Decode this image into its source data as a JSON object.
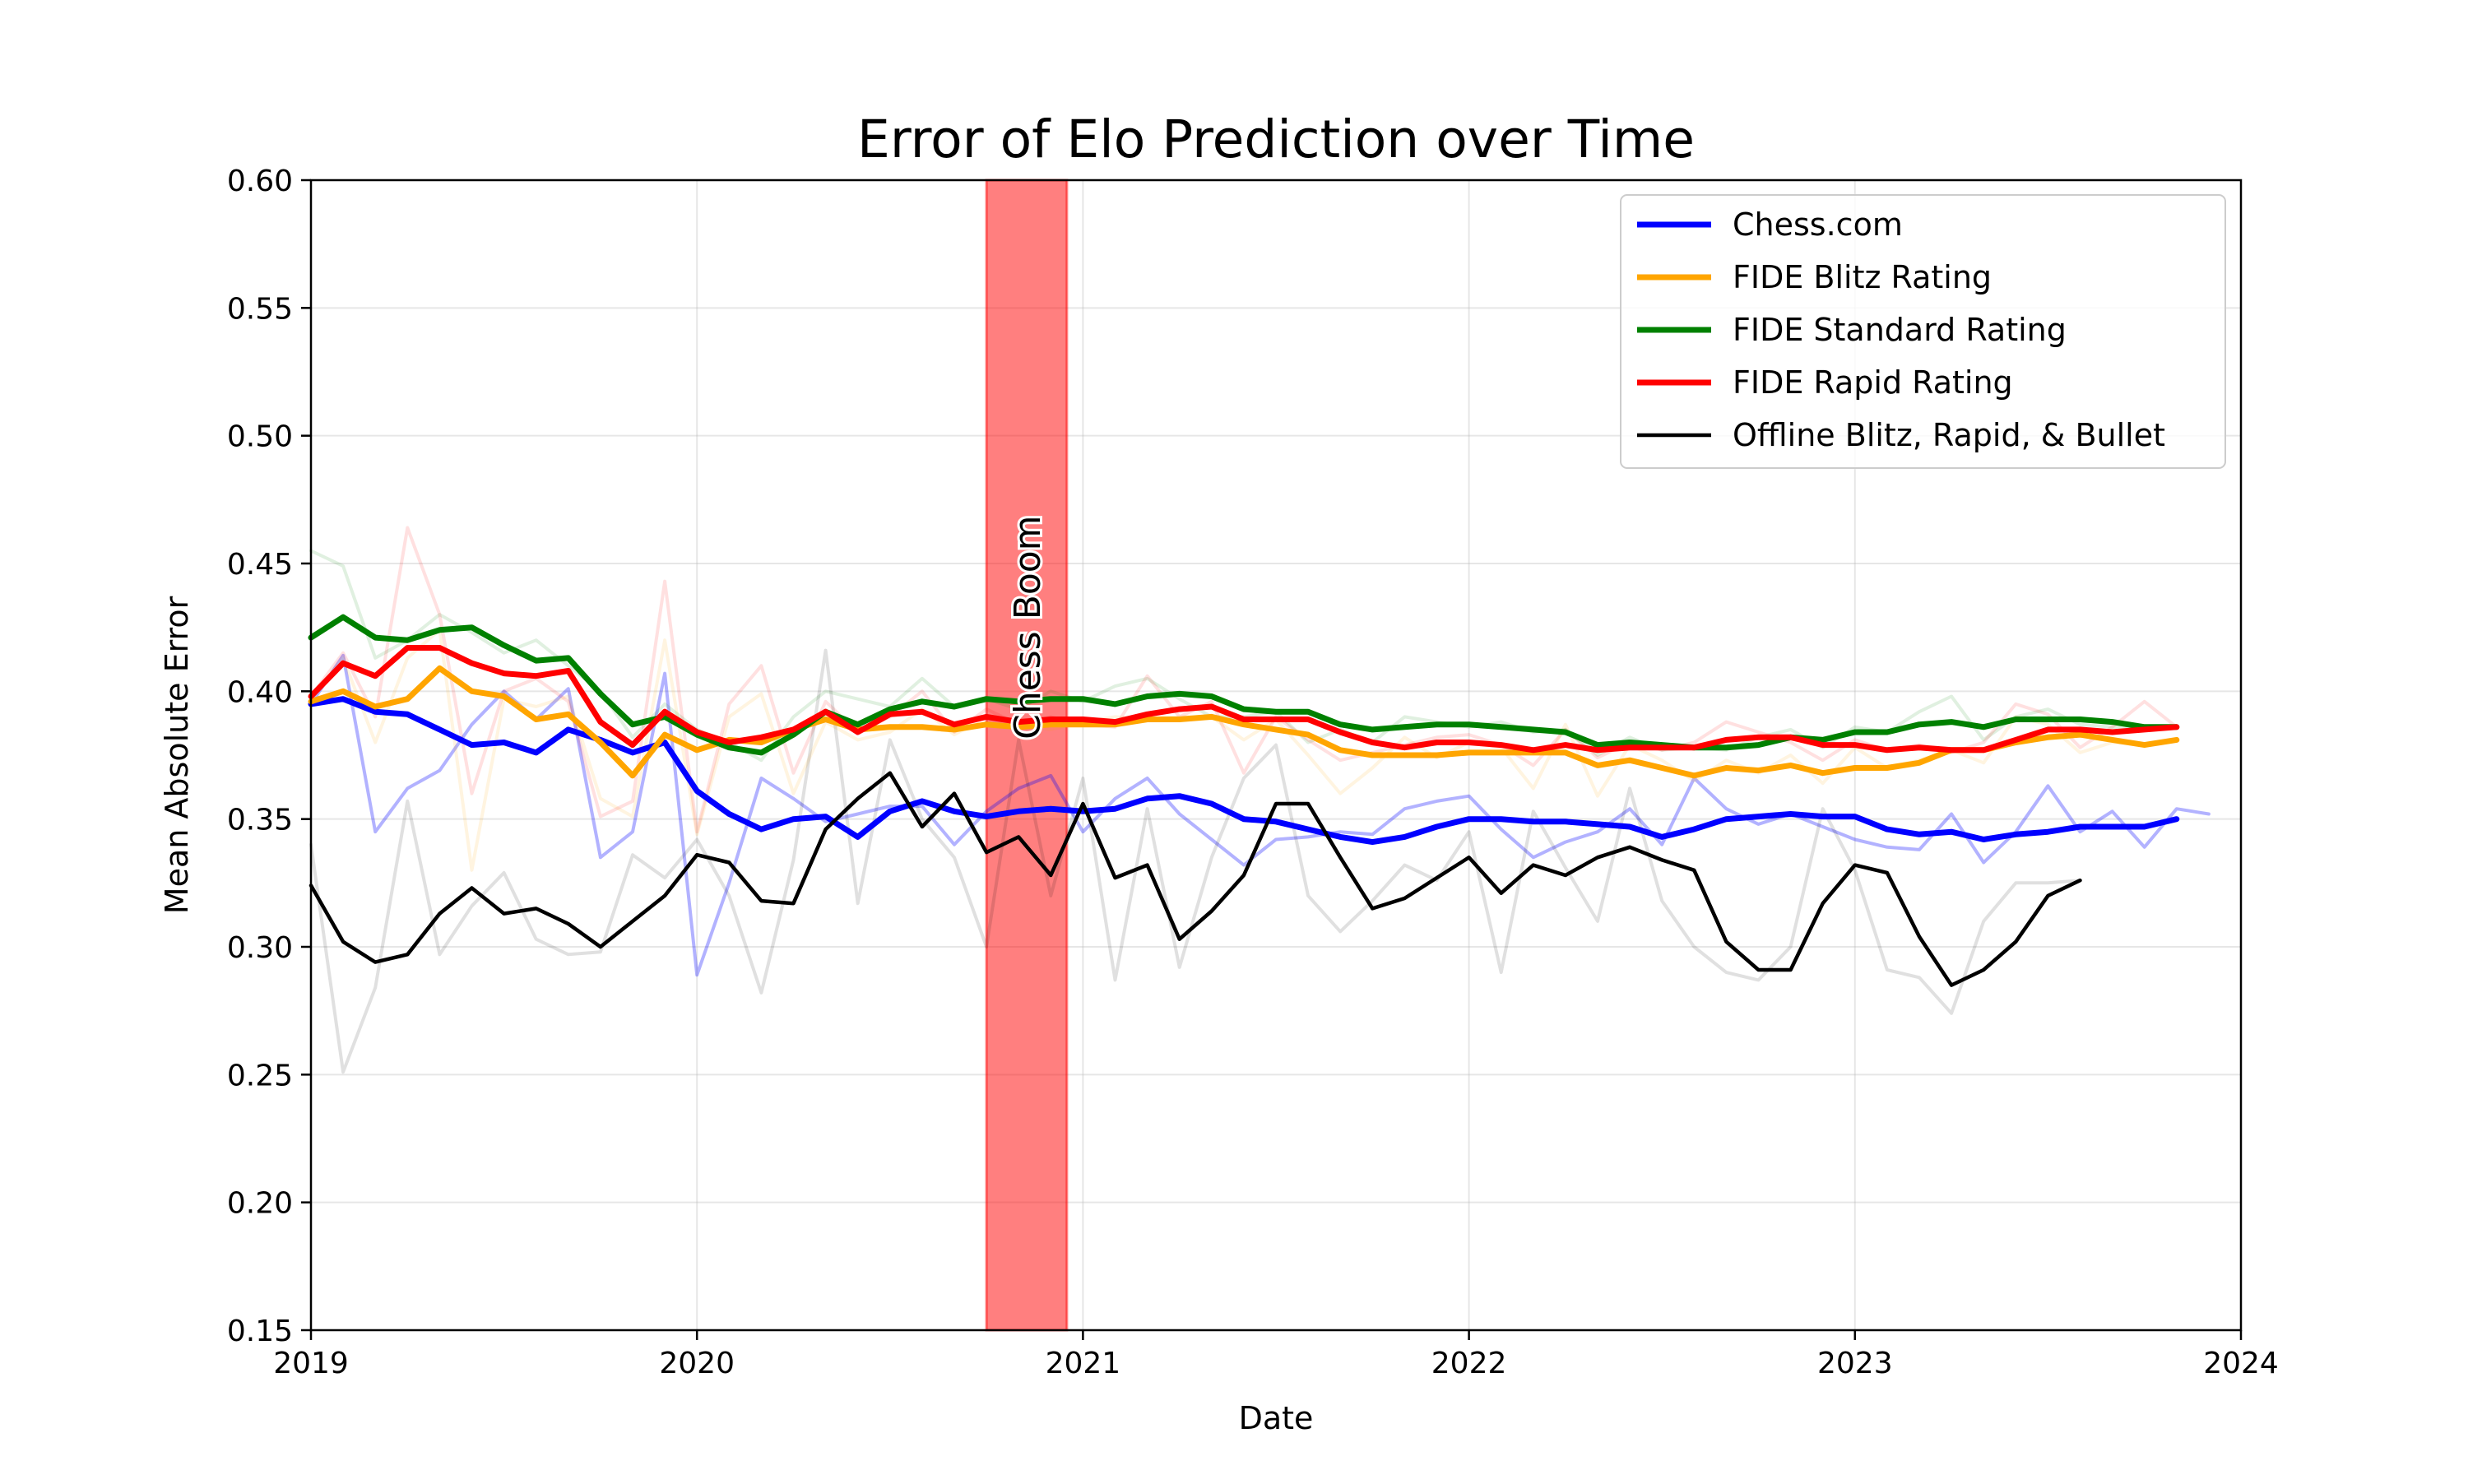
{
  "chart_data": {
    "type": "line",
    "title": "Error of Elo Prediction over Time",
    "xlabel": "Date",
    "ylabel": "Mean Absolute Error",
    "xlim": [
      "2019-01",
      "2024-01"
    ],
    "ylim": [
      0.15,
      0.6
    ],
    "x_ticks": [
      "2019",
      "2020",
      "2021",
      "2022",
      "2023",
      "2024"
    ],
    "y_ticks": [
      "0.15",
      "0.20",
      "0.25",
      "0.30",
      "0.35",
      "0.40",
      "0.45",
      "0.50",
      "0.55",
      "0.60"
    ],
    "grid": true,
    "legend_position": "top-right",
    "annotation": {
      "label": "Chess Boom",
      "x_start": "2020-10",
      "x_end": "2020-12",
      "color": "#ff0000"
    },
    "series": [
      {
        "name": "Chess.com",
        "color": "#0000ff",
        "x": [
          "2019-01",
          "2019-02",
          "2019-03",
          "2019-04",
          "2019-05",
          "2019-06",
          "2019-07",
          "2019-08",
          "2019-09",
          "2019-10",
          "2019-11",
          "2019-12",
          "2020-01",
          "2020-02",
          "2020-03",
          "2020-04",
          "2020-05",
          "2020-06",
          "2020-07",
          "2020-08",
          "2020-09",
          "2020-10",
          "2020-11",
          "2020-12",
          "2021-01",
          "2021-02",
          "2021-03",
          "2021-04",
          "2021-05",
          "2021-06",
          "2021-07",
          "2021-08",
          "2021-09",
          "2021-10",
          "2021-11",
          "2021-12",
          "2022-01",
          "2022-02",
          "2022-03",
          "2022-04",
          "2022-05",
          "2022-06",
          "2022-07",
          "2022-08",
          "2022-09",
          "2022-10",
          "2022-11",
          "2022-12",
          "2023-01",
          "2023-02",
          "2023-03",
          "2023-04",
          "2023-05",
          "2023-06",
          "2023-07",
          "2023-08",
          "2023-09",
          "2023-10",
          "2023-11"
        ],
        "values": [
          0.395,
          0.397,
          0.392,
          0.391,
          0.385,
          0.379,
          0.38,
          0.376,
          0.385,
          0.381,
          0.376,
          0.38,
          0.361,
          0.352,
          0.346,
          0.35,
          0.351,
          0.343,
          0.353,
          0.357,
          0.353,
          0.351,
          0.353,
          0.354,
          0.353,
          0.354,
          0.358,
          0.359,
          0.356,
          0.35,
          0.349,
          0.346,
          0.343,
          0.341,
          0.343,
          0.347,
          0.35,
          0.35,
          0.349,
          0.349,
          0.348,
          0.347,
          0.343,
          0.346,
          0.35,
          0.351,
          0.352,
          0.351,
          0.351,
          0.346,
          0.344,
          0.345,
          0.342,
          0.344,
          0.345,
          0.347,
          0.347,
          0.347,
          0.35
        ]
      },
      {
        "name": "FIDE Blitz Rating",
        "color": "#ffa500",
        "x": [
          "2019-01",
          "2019-02",
          "2019-03",
          "2019-04",
          "2019-05",
          "2019-06",
          "2019-07",
          "2019-08",
          "2019-09",
          "2019-10",
          "2019-11",
          "2019-12",
          "2020-01",
          "2020-02",
          "2020-03",
          "2020-04",
          "2020-05",
          "2020-06",
          "2020-07",
          "2020-08",
          "2020-09",
          "2020-10",
          "2020-11",
          "2020-12",
          "2021-01",
          "2021-02",
          "2021-03",
          "2021-04",
          "2021-05",
          "2021-06",
          "2021-07",
          "2021-08",
          "2021-09",
          "2021-10",
          "2021-11",
          "2021-12",
          "2022-01",
          "2022-02",
          "2022-03",
          "2022-04",
          "2022-05",
          "2022-06",
          "2022-07",
          "2022-08",
          "2022-09",
          "2022-10",
          "2022-11",
          "2022-12",
          "2023-01",
          "2023-02",
          "2023-03",
          "2023-04",
          "2023-05",
          "2023-06",
          "2023-07",
          "2023-08",
          "2023-09",
          "2023-10",
          "2023-11"
        ],
        "values": [
          0.396,
          0.4,
          0.394,
          0.397,
          0.409,
          0.4,
          0.398,
          0.389,
          0.391,
          0.38,
          0.367,
          0.383,
          0.377,
          0.381,
          0.38,
          0.385,
          0.389,
          0.385,
          0.386,
          0.386,
          0.385,
          0.387,
          0.386,
          0.387,
          0.387,
          0.387,
          0.389,
          0.389,
          0.39,
          0.387,
          0.385,
          0.383,
          0.377,
          0.375,
          0.375,
          0.375,
          0.376,
          0.376,
          0.376,
          0.376,
          0.371,
          0.373,
          0.37,
          0.367,
          0.37,
          0.369,
          0.371,
          0.368,
          0.37,
          0.37,
          0.372,
          0.377,
          0.377,
          0.38,
          0.382,
          0.383,
          0.381,
          0.379,
          0.381
        ]
      },
      {
        "name": "FIDE Standard Rating",
        "color": "#008000",
        "x": [
          "2019-01",
          "2019-02",
          "2019-03",
          "2019-04",
          "2019-05",
          "2019-06",
          "2019-07",
          "2019-08",
          "2019-09",
          "2019-10",
          "2019-11",
          "2019-12",
          "2020-01",
          "2020-02",
          "2020-03",
          "2020-04",
          "2020-05",
          "2020-06",
          "2020-07",
          "2020-08",
          "2020-09",
          "2020-10",
          "2020-11",
          "2020-12",
          "2021-01",
          "2021-02",
          "2021-03",
          "2021-04",
          "2021-05",
          "2021-06",
          "2021-07",
          "2021-08",
          "2021-09",
          "2021-10",
          "2021-11",
          "2021-12",
          "2022-01",
          "2022-02",
          "2022-03",
          "2022-04",
          "2022-05",
          "2022-06",
          "2022-07",
          "2022-08",
          "2022-09",
          "2022-10",
          "2022-11",
          "2022-12",
          "2023-01",
          "2023-02",
          "2023-03",
          "2023-04",
          "2023-05",
          "2023-06",
          "2023-07",
          "2023-08",
          "2023-09",
          "2023-10",
          "2023-11"
        ],
        "values": [
          0.421,
          0.429,
          0.421,
          0.42,
          0.424,
          0.425,
          0.418,
          0.412,
          0.413,
          0.399,
          0.387,
          0.39,
          0.383,
          0.378,
          0.376,
          0.383,
          0.392,
          0.387,
          0.393,
          0.396,
          0.394,
          0.397,
          0.396,
          0.397,
          0.397,
          0.395,
          0.398,
          0.399,
          0.398,
          0.393,
          0.392,
          0.392,
          0.387,
          0.385,
          0.386,
          0.387,
          0.387,
          0.386,
          0.385,
          0.384,
          0.379,
          0.38,
          0.379,
          0.378,
          0.378,
          0.379,
          0.382,
          0.381,
          0.384,
          0.384,
          0.387,
          0.388,
          0.386,
          0.389,
          0.389,
          0.389,
          0.388,
          0.386,
          0.386
        ]
      },
      {
        "name": "FIDE Rapid Rating",
        "color": "#ff0000",
        "x": [
          "2019-01",
          "2019-02",
          "2019-03",
          "2019-04",
          "2019-05",
          "2019-06",
          "2019-07",
          "2019-08",
          "2019-09",
          "2019-10",
          "2019-11",
          "2019-12",
          "2020-01",
          "2020-02",
          "2020-03",
          "2020-04",
          "2020-05",
          "2020-06",
          "2020-07",
          "2020-08",
          "2020-09",
          "2020-10",
          "2020-11",
          "2020-12",
          "2021-01",
          "2021-02",
          "2021-03",
          "2021-04",
          "2021-05",
          "2021-06",
          "2021-07",
          "2021-08",
          "2021-09",
          "2021-10",
          "2021-11",
          "2021-12",
          "2022-01",
          "2022-02",
          "2022-03",
          "2022-04",
          "2022-05",
          "2022-06",
          "2022-07",
          "2022-08",
          "2022-09",
          "2022-10",
          "2022-11",
          "2022-12",
          "2023-01",
          "2023-02",
          "2023-03",
          "2023-04",
          "2023-05",
          "2023-06",
          "2023-07",
          "2023-08",
          "2023-09",
          "2023-10",
          "2023-11"
        ],
        "values": [
          0.398,
          0.411,
          0.406,
          0.417,
          0.417,
          0.411,
          0.407,
          0.406,
          0.408,
          0.388,
          0.379,
          0.392,
          0.384,
          0.38,
          0.382,
          0.385,
          0.392,
          0.384,
          0.391,
          0.392,
          0.387,
          0.39,
          0.388,
          0.389,
          0.389,
          0.388,
          0.391,
          0.393,
          0.394,
          0.389,
          0.389,
          0.389,
          0.384,
          0.38,
          0.378,
          0.38,
          0.38,
          0.379,
          0.377,
          0.379,
          0.377,
          0.378,
          0.378,
          0.378,
          0.381,
          0.382,
          0.382,
          0.379,
          0.379,
          0.377,
          0.378,
          0.377,
          0.377,
          0.381,
          0.385,
          0.385,
          0.384,
          0.385,
          0.386
        ]
      },
      {
        "name": "Offline Blitz, Rapid, & Bullet",
        "color": "#000000",
        "x": [
          "2019-01",
          "2019-02",
          "2019-03",
          "2019-04",
          "2019-05",
          "2019-06",
          "2019-07",
          "2019-08",
          "2019-09",
          "2019-10",
          "2019-11",
          "2019-12",
          "2020-01",
          "2020-02",
          "2020-03",
          "2020-04",
          "2020-05",
          "2020-06",
          "2020-07",
          "2020-08",
          "2020-09",
          "2020-10",
          "2020-11",
          "2020-12",
          "2021-01",
          "2021-02",
          "2021-03",
          "2021-04",
          "2021-05",
          "2021-06",
          "2021-07",
          "2021-08",
          "2021-09",
          "2021-10",
          "2021-11",
          "2021-12",
          "2022-01",
          "2022-02",
          "2022-03",
          "2022-04",
          "2022-05",
          "2022-06",
          "2022-07",
          "2022-08",
          "2022-09",
          "2022-10",
          "2022-11",
          "2022-12",
          "2023-01",
          "2023-02",
          "2023-03",
          "2023-04",
          "2023-05",
          "2023-06",
          "2023-07",
          "2023-08"
        ],
        "values": [
          0.324,
          0.302,
          0.294,
          0.297,
          0.313,
          0.323,
          0.313,
          0.315,
          0.309,
          0.3,
          0.31,
          0.32,
          0.336,
          0.333,
          0.318,
          0.317,
          0.346,
          0.358,
          0.368,
          0.347,
          0.36,
          0.337,
          0.343,
          0.328,
          0.356,
          0.327,
          0.332,
          0.303,
          0.314,
          0.328,
          0.356,
          0.356,
          0.335,
          0.315,
          0.319,
          0.327,
          0.335,
          0.321,
          0.332,
          0.328,
          0.335,
          0.339,
          0.334,
          0.33,
          0.302,
          0.291,
          0.291,
          0.317,
          0.332,
          0.329,
          0.304,
          0.285,
          0.291,
          0.302,
          0.32,
          0.326
        ]
      }
    ],
    "raw_series": [
      {
        "of": "Chess.com",
        "color": "#0000ff",
        "values": [
          0.395,
          0.414,
          0.345,
          0.362,
          0.369,
          0.387,
          0.4,
          0.389,
          0.401,
          0.335,
          0.345,
          0.407,
          0.289,
          0.325,
          0.366,
          0.358,
          0.349,
          0.352,
          0.355,
          0.355,
          0.34,
          0.353,
          0.362,
          0.367,
          0.345,
          0.358,
          0.366,
          0.352,
          0.342,
          0.332,
          0.342,
          0.343,
          0.345,
          0.344,
          0.354,
          0.357,
          0.359,
          0.346,
          0.335,
          0.341,
          0.345,
          0.354,
          0.34,
          0.366,
          0.354,
          0.348,
          0.352,
          0.347,
          0.342,
          0.339,
          0.338,
          0.352,
          0.333,
          0.345,
          0.363,
          0.345,
          0.353,
          0.339,
          0.354,
          0.352
        ]
      },
      {
        "of": "FIDE Blitz Rating",
        "color": "#ffa500",
        "values": [
          0.397,
          0.413,
          0.38,
          0.413,
          0.424,
          0.33,
          0.397,
          0.394,
          0.398,
          0.358,
          0.351,
          0.42,
          0.344,
          0.39,
          0.399,
          0.36,
          0.388,
          0.381,
          0.384,
          0.393,
          0.383,
          0.39,
          0.387,
          0.385,
          0.388,
          0.39,
          0.389,
          0.39,
          0.39,
          0.381,
          0.389,
          0.375,
          0.36,
          0.37,
          0.382,
          0.374,
          0.38,
          0.378,
          0.362,
          0.387,
          0.359,
          0.379,
          0.373,
          0.365,
          0.373,
          0.368,
          0.375,
          0.364,
          0.378,
          0.37,
          0.373,
          0.377,
          0.372,
          0.39,
          0.387,
          0.376,
          0.38,
          0.379,
          0.381
        ]
      },
      {
        "of": "FIDE Standard Rating",
        "color": "#008000",
        "values": [
          0.455,
          0.449,
          0.413,
          0.42,
          0.43,
          0.423,
          0.415,
          0.42,
          0.41,
          0.4,
          0.382,
          0.395,
          0.385,
          0.38,
          0.373,
          0.39,
          0.4,
          0.397,
          0.394,
          0.405,
          0.394,
          0.397,
          0.393,
          0.4,
          0.396,
          0.402,
          0.405,
          0.397,
          0.39,
          0.39,
          0.392,
          0.38,
          0.385,
          0.38,
          0.39,
          0.388,
          0.386,
          0.388,
          0.384,
          0.385,
          0.375,
          0.382,
          0.377,
          0.378,
          0.377,
          0.382,
          0.385,
          0.378,
          0.386,
          0.384,
          0.392,
          0.398,
          0.381,
          0.39,
          0.393,
          0.387,
          0.386,
          0.385,
          0.386
        ]
      },
      {
        "of": "FIDE Rapid Rating",
        "color": "#ff0000",
        "values": [
          0.398,
          0.415,
          0.39,
          0.464,
          0.43,
          0.36,
          0.4,
          0.405,
          0.396,
          0.351,
          0.357,
          0.443,
          0.345,
          0.395,
          0.41,
          0.368,
          0.396,
          0.384,
          0.39,
          0.4,
          0.384,
          0.393,
          0.387,
          0.39,
          0.387,
          0.386,
          0.406,
          0.39,
          0.396,
          0.368,
          0.39,
          0.381,
          0.373,
          0.376,
          0.379,
          0.382,
          0.383,
          0.379,
          0.371,
          0.385,
          0.374,
          0.38,
          0.377,
          0.38,
          0.388,
          0.384,
          0.38,
          0.373,
          0.381,
          0.377,
          0.379,
          0.376,
          0.38,
          0.395,
          0.391,
          0.378,
          0.386,
          0.396,
          0.386
        ]
      },
      {
        "of": "Offline Blitz, Rapid, & Bullet",
        "color": "#000000",
        "values": [
          0.34,
          0.251,
          0.284,
          0.357,
          0.297,
          0.316,
          0.329,
          0.303,
          0.297,
          0.298,
          0.336,
          0.327,
          0.342,
          0.32,
          0.282,
          0.334,
          0.416,
          0.317,
          0.381,
          0.35,
          0.335,
          0.3,
          0.381,
          0.32,
          0.366,
          0.287,
          0.354,
          0.292,
          0.335,
          0.366,
          0.379,
          0.32,
          0.306,
          0.318,
          0.332,
          0.326,
          0.345,
          0.29,
          0.353,
          0.331,
          0.31,
          0.362,
          0.318,
          0.3,
          0.29,
          0.287,
          0.3,
          0.354,
          0.33,
          0.291,
          0.288,
          0.274,
          0.31,
          0.325,
          0.325,
          0.326
        ]
      }
    ]
  }
}
